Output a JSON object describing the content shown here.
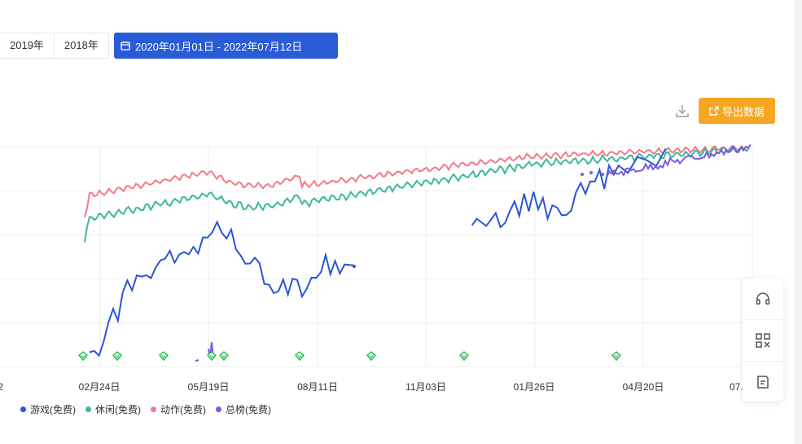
{
  "year_buttons": [
    "2019年",
    "2018年"
  ],
  "date_range": "2020年01月01日 - 2022年07月12日",
  "toolbar": {
    "export_label": "导出数据",
    "download_icon": "download-icon",
    "export_icon": "external-link-icon"
  },
  "colors": {
    "primary": "#2a5bd7",
    "export": "#f5a623",
    "game": "#2a55d6",
    "casual": "#3cb89b",
    "action": "#f07b8a",
    "total": "#7a5ae0",
    "marker": "#1fb84c"
  },
  "chart_data": {
    "type": "line",
    "x_tick_labels": [
      "02月24日",
      "05月19日",
      "08月11日",
      "11月03日",
      "01月26日",
      "04月20日"
    ],
    "x_tick_partial": {
      "left": "2",
      "right": "07."
    },
    "y_tick_labels": [],
    "series": [
      {
        "name": "游戏(免费)",
        "color": "#2a55d6",
        "segments": [
          [
            [
              0.0,
              0.96
            ],
            [
              0.5,
              0.92
            ],
            [
              1,
              0.96
            ],
            [
              1.5,
              0.88
            ],
            [
              2,
              0.82
            ],
            [
              2.5,
              0.72
            ],
            [
              3,
              0.76
            ],
            [
              3.5,
              0.62
            ],
            [
              4,
              0.6
            ],
            [
              4.5,
              0.64
            ],
            [
              5,
              0.56
            ],
            [
              5.5,
              0.6
            ],
            [
              6,
              0.54
            ],
            [
              6.5,
              0.58
            ],
            [
              7,
              0.55
            ],
            [
              7.5,
              0.5
            ],
            [
              8,
              0.52
            ],
            [
              8.5,
              0.48
            ],
            [
              9,
              0.5
            ],
            [
              9.5,
              0.46
            ],
            [
              10,
              0.48
            ],
            [
              10.5,
              0.45
            ],
            [
              11,
              0.42
            ],
            [
              11.5,
              0.44
            ],
            [
              12,
              0.4
            ],
            [
              12.5,
              0.38
            ],
            [
              13,
              0.36
            ],
            [
              13.5,
              0.3
            ],
            [
              14,
              0.34
            ],
            [
              14.5,
              0.38
            ],
            [
              15,
              0.36
            ],
            [
              15.5,
              0.42
            ],
            [
              16,
              0.46
            ],
            [
              16.5,
              0.5
            ],
            [
              17,
              0.48
            ],
            [
              17.5,
              0.52
            ],
            [
              18,
              0.54
            ],
            [
              18.5,
              0.6
            ],
            [
              19,
              0.58
            ],
            [
              19.5,
              0.62
            ],
            [
              20,
              0.66
            ],
            [
              20.5,
              0.62
            ],
            [
              21,
              0.64
            ],
            [
              21.5,
              0.6
            ],
            [
              22,
              0.58
            ],
            [
              22.5,
              0.64
            ],
            [
              23,
              0.66
            ],
            [
              23.5,
              0.6
            ],
            [
              24,
              0.56
            ],
            [
              24.5,
              0.58
            ],
            [
              25,
              0.5
            ],
            [
              25.5,
              0.54
            ],
            [
              26,
              0.48
            ],
            [
              26.5,
              0.54
            ],
            [
              27,
              0.52
            ],
            [
              28,
              0.52
            ]
          ],
          [
            [
              40.5,
              0.32
            ],
            [
              41,
              0.33
            ],
            [
              42,
              0.32
            ],
            [
              42.5,
              0.33
            ],
            [
              43,
              0.3
            ],
            [
              43.5,
              0.32
            ],
            [
              44,
              0.31
            ],
            [
              44.5,
              0.3
            ],
            [
              45,
              0.24
            ],
            [
              45.5,
              0.28
            ],
            [
              46,
              0.21
            ],
            [
              46.5,
              0.28
            ],
            [
              47,
              0.18
            ],
            [
              47.5,
              0.23
            ],
            [
              48,
              0.2
            ],
            [
              48.5,
              0.3
            ],
            [
              49,
              0.22
            ],
            [
              49.5,
              0.26
            ],
            [
              50,
              0.3
            ],
            [
              50.5,
              0.31
            ],
            [
              51,
              0.29
            ],
            [
              51.5,
              0.2
            ],
            [
              52,
              0.14
            ],
            [
              52.5,
              0.2
            ],
            [
              53,
              0.12
            ],
            [
              53.5,
              0.16
            ],
            [
              54,
              0.09
            ],
            [
              54.5,
              0.13
            ],
            [
              55,
              0.06
            ],
            [
              55.5,
              0.1
            ],
            [
              56,
              0.04
            ],
            [
              57,
              0.06
            ],
            [
              58,
              0.03
            ],
            [
              59,
              0.05
            ],
            [
              60,
              0.02
            ],
            [
              61,
              0.0
            ]
          ]
        ]
      },
      {
        "name": "休闲(免费)",
        "color": "#3cb89b"
      },
      {
        "name": "动作(免费)",
        "color": "#f07b8a"
      },
      {
        "name": "总榜(免费)",
        "color": "#7a5ae0"
      }
    ]
  },
  "float_panel": {
    "items": [
      "headset-icon",
      "qr-code-icon",
      "edit-note-icon"
    ]
  }
}
